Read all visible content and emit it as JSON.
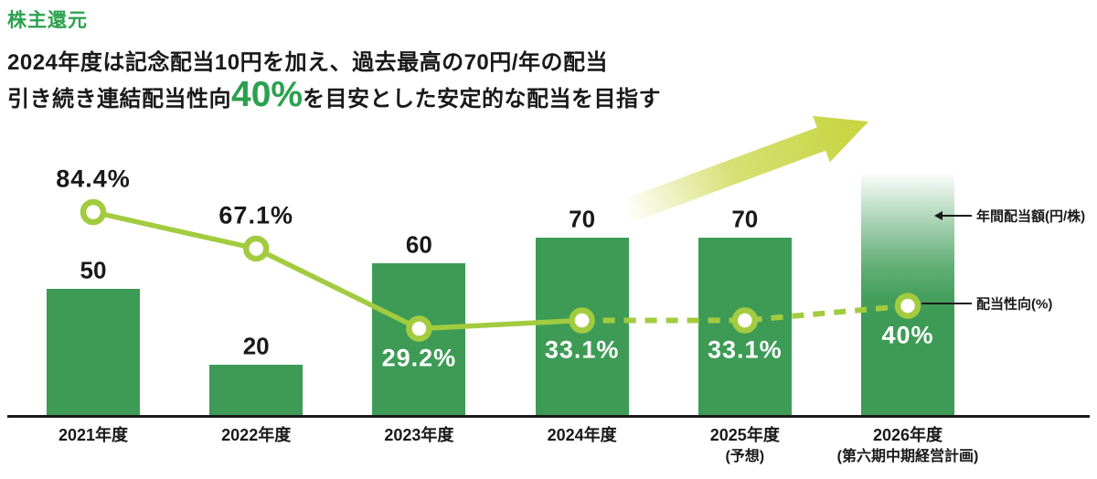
{
  "header": {
    "title": "株主還元",
    "line1": "2024年度は記念配当10円を加え、過去最高の70円/年の配当",
    "line2_prefix": "引き続き連結配当性向",
    "line2_highlight": "40%",
    "line2_suffix": "を目安とした安定的な配当を目指す"
  },
  "chart_data": {
    "type": "bar+line",
    "categories": [
      "2021年度",
      "2022年度",
      "2023年度",
      "2024年度",
      "2025年度",
      "2026年度"
    ],
    "category_sublabels": [
      "",
      "",
      "",
      "",
      "(予想)",
      "(第六期中期経営計画)"
    ],
    "series": [
      {
        "name": "年間配当額(円/株)",
        "type": "bar",
        "values": [
          50,
          20,
          60,
          70,
          70,
          null
        ],
        "value_labels": [
          "50",
          "20",
          "60",
          "70",
          "70",
          ""
        ],
        "color": "#3d9b55",
        "future_bar_index": 5,
        "future_bar_style": "white-to-green vertical gradient, taller than 70-bars, no value label"
      },
      {
        "name": "配当性向(%)",
        "type": "line",
        "values": [
          84.4,
          67.1,
          29.2,
          33.1,
          33.1,
          40
        ],
        "value_labels": [
          "84.4%",
          "67.1%",
          "29.2%",
          "33.1%",
          "33.1%",
          "40%"
        ],
        "label_positions": [
          "above",
          "above",
          "below",
          "below",
          "below",
          "below"
        ],
        "label_colors": [
          "#191919",
          "#191919",
          "#ffffff",
          "#ffffff",
          "#ffffff",
          "#ffffff"
        ],
        "solid_until_index": 3,
        "dashed_from_index": 3,
        "color": "#a3cb3f",
        "marker": "open-circle"
      }
    ],
    "annotations": [
      {
        "text": "年間配当額(円/株)",
        "points_to": "2026 gradient bar"
      },
      {
        "text": "配当性向(%)",
        "points_to": "2026 40% line marker"
      }
    ],
    "trend_arrow": "yellow-green gradient arrow rising to upper right above 2024-2026 bars",
    "ylim_bar_axis": [
      0,
      95
    ],
    "grid": false,
    "legend_position": "right-side callouts"
  },
  "colors": {
    "bar_green": "#3d9b55",
    "line_green": "#a3cb3f",
    "accent_green": "#2aa14e",
    "text_black": "#191919",
    "arrow_yellow_green": "#c6d43c"
  }
}
